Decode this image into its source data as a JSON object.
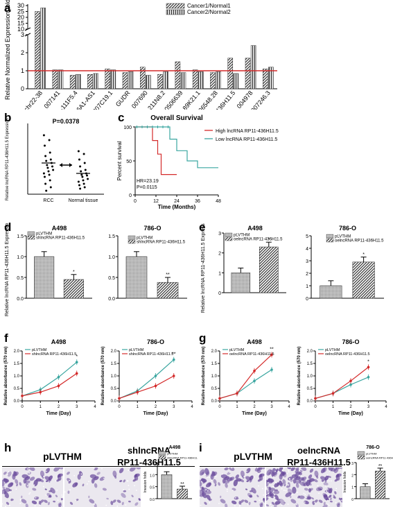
{
  "panel_labels": {
    "a": "a",
    "b": "b",
    "c": "c",
    "d": "d",
    "e": "e",
    "f": "f",
    "g": "g",
    "h": "h",
    "i": "i"
  },
  "colors": {
    "red": "#d42a2a",
    "teal": "#3aa6a0",
    "hatch": "#333333",
    "purple": "#6a4c9c"
  },
  "chart_data": [
    {
      "id": "a",
      "type": "bar",
      "ylabel": "Relative Normalized Expression(fold)",
      "yticks": [
        "0",
        "1",
        "2",
        "3",
        "10",
        "15",
        "20",
        "25",
        "30"
      ],
      "categories": [
        "chr22-38",
        "XLOC_007141",
        "RP11-111F5.4",
        "SLC6A1-AS1",
        "RP11-307C19.1",
        "GUDR",
        "XLOC_007690",
        "RP11-211N8.2",
        "LOC100506639",
        "RP11-89K21.1",
        "AC006548.28",
        "RP11-436H11.5",
        "XLOC_004978",
        "AC007246.3"
      ],
      "series": [
        {
          "name": "Cancer1/Normal1",
          "values": [
            25,
            1.05,
            0.75,
            0.8,
            1.1,
            0.9,
            1.2,
            0.8,
            1.5,
            1.05,
            0.9,
            1.7,
            1.7,
            1.1
          ]
        },
        {
          "name": "Cancer2/Normal2",
          "values": [
            28,
            1.05,
            0.8,
            0.85,
            1.05,
            0.95,
            0.75,
            0.95,
            0.9,
            0.95,
            0.95,
            0.85,
            2.4,
            1.2
          ]
        }
      ],
      "reference_line": 1
    },
    {
      "id": "b",
      "type": "scatter",
      "title": "P=0.0378",
      "ylabel": "Relative lncRNA RP11-436H11.5 Expression",
      "categories": [
        "RCC",
        "Normal tissue"
      ],
      "means": [
        0.45,
        0.3
      ]
    },
    {
      "id": "c",
      "type": "line",
      "title": "Overall Survival",
      "xlabel": "Time (Months)",
      "ylabel": "Percent survival",
      "xticks": [
        "0",
        "12",
        "24",
        "36",
        "48"
      ],
      "yticks": [
        "0",
        "50",
        "100"
      ],
      "annotations": [
        "HR=23.19",
        "P=0.0115"
      ],
      "series": [
        {
          "name": "High lncRNA RP11-436H11.5",
          "x": [
            0,
            10,
            10,
            13,
            13,
            15,
            15,
            24
          ],
          "y": [
            100,
            100,
            80,
            80,
            60,
            60,
            30,
            30
          ]
        },
        {
          "name": "Low lncRNA RP11-436H11.5",
          "x": [
            0,
            20,
            20,
            24,
            24,
            30,
            30,
            36,
            36,
            48
          ],
          "y": [
            100,
            100,
            82,
            82,
            65,
            65,
            50,
            50,
            40,
            40
          ]
        }
      ]
    },
    {
      "id": "d1",
      "type": "bar",
      "title": "A498",
      "ylabel": "Relative lncRNA RP11-436H11.5 Expression",
      "yticks": [
        "0.0",
        "0.5",
        "1.0",
        "1.5"
      ],
      "ylim": [
        0,
        1.5
      ],
      "series": [
        {
          "name": "pLVTHM",
          "values": [
            1.0
          ]
        },
        {
          "name": "shlncRNA RP11-436H11.5",
          "values": [
            0.45
          ]
        }
      ],
      "sig": "*"
    },
    {
      "id": "d2",
      "type": "bar",
      "title": "786-O",
      "yticks": [
        "0.0",
        "0.5",
        "1.0",
        "1.5"
      ],
      "ylim": [
        0,
        1.5
      ],
      "series": [
        {
          "name": "pLVTHM",
          "values": [
            1.0
          ]
        },
        {
          "name": "shlncRNA RP11-436H11.5",
          "values": [
            0.38
          ]
        }
      ],
      "sig": "**"
    },
    {
      "id": "e1",
      "type": "bar",
      "title": "A498",
      "ylabel": "Relative lncRNA RP11-436H11.5 Expression",
      "yticks": [
        "0",
        "1",
        "2",
        "3"
      ],
      "ylim": [
        0,
        3
      ],
      "series": [
        {
          "name": "pLVTHM",
          "values": [
            1.0
          ]
        },
        {
          "name": "oelncRNA RP11-436H11.5",
          "values": [
            2.3
          ]
        }
      ],
      "sig": "*"
    },
    {
      "id": "e2",
      "type": "bar",
      "title": "786-O",
      "yticks": [
        "0",
        "1",
        "2",
        "3",
        "4",
        "5"
      ],
      "ylim": [
        0,
        5
      ],
      "series": [
        {
          "name": "pLVTHM",
          "values": [
            1.0
          ]
        },
        {
          "name": "oelncRNA RP11-436H11.5",
          "values": [
            2.9
          ]
        }
      ],
      "sig": "*"
    },
    {
      "id": "f1",
      "type": "line",
      "title": "A498",
      "xlabel": "Time (Day)",
      "ylabel": "Relative absorbance (570 nm)",
      "xticks": [
        "0",
        "1",
        "2",
        "3",
        "4"
      ],
      "yticks": [
        "0.0",
        "0.5",
        "1.0",
        "1.5",
        "2.0"
      ],
      "ylim": [
        0,
        2
      ],
      "series": [
        {
          "name": "pLVTHM",
          "x": [
            0,
            1,
            2,
            3
          ],
          "y": [
            0.2,
            0.45,
            0.95,
            1.55
          ]
        },
        {
          "name": "shlncRNA RP11-436H11.5",
          "x": [
            0,
            1,
            2,
            3
          ],
          "y": [
            0.2,
            0.35,
            0.6,
            1.1
          ]
        }
      ],
      "sig": "*"
    },
    {
      "id": "f2",
      "type": "line",
      "title": "786-O",
      "xlabel": "Time (Day)",
      "ylabel": "Relative absorbance (570 nm)",
      "xticks": [
        "0",
        "1",
        "2",
        "3",
        "4"
      ],
      "yticks": [
        "0.0",
        "0.5",
        "1.0",
        "1.5",
        "2.0"
      ],
      "ylim": [
        0,
        2
      ],
      "series": [
        {
          "name": "pLVTHM",
          "x": [
            0,
            1,
            2,
            3
          ],
          "y": [
            0.1,
            0.4,
            1.0,
            1.65
          ]
        },
        {
          "name": "shlncRNA RP11-436H11.5",
          "x": [
            0,
            1,
            2,
            3
          ],
          "y": [
            0.1,
            0.35,
            0.6,
            1.0
          ]
        }
      ],
      "sig": "**"
    },
    {
      "id": "g1",
      "type": "line",
      "title": "A498",
      "xlabel": "Time (Day)",
      "ylabel": "Relative absorbance (570 nm)",
      "xticks": [
        "0",
        "1",
        "2",
        "3",
        "4"
      ],
      "yticks": [
        "0.0",
        "0.5",
        "1.0",
        "1.5",
        "2.0"
      ],
      "ylim": [
        0,
        2
      ],
      "series": [
        {
          "name": "pLVTHM",
          "x": [
            0,
            1,
            2,
            3
          ],
          "y": [
            0.1,
            0.3,
            0.8,
            1.25
          ]
        },
        {
          "name": "oelncRNA RP11-436H11.5",
          "x": [
            0,
            1,
            2,
            3
          ],
          "y": [
            0.1,
            0.3,
            1.2,
            1.85
          ]
        }
      ],
      "sig": "**"
    },
    {
      "id": "g2",
      "type": "line",
      "title": "786-O",
      "xlabel": "Time (Day)",
      "ylabel": "Relative absorbance (570 nm)",
      "xticks": [
        "0",
        "1",
        "2",
        "3",
        "4"
      ],
      "yticks": [
        "0.0",
        "0.5",
        "1.0",
        "1.5",
        "2.0"
      ],
      "ylim": [
        0,
        2
      ],
      "series": [
        {
          "name": "pLVTHM",
          "x": [
            0,
            1,
            2,
            3
          ],
          "y": [
            0.1,
            0.3,
            0.65,
            0.95
          ]
        },
        {
          "name": "oelncRNA RP11-436H11.5",
          "x": [
            0,
            1,
            2,
            3
          ],
          "y": [
            0.1,
            0.3,
            0.8,
            1.35
          ]
        }
      ],
      "sig": "*"
    },
    {
      "id": "h",
      "type": "bar",
      "title": "A498",
      "ylabel": "Invasion folds",
      "yticks": [
        "0.0",
        "0.5",
        "1.0",
        "1.5"
      ],
      "ylim": [
        0,
        1.5
      ],
      "series": [
        {
          "name": "pLVTHM",
          "values": [
            1.0
          ]
        },
        {
          "name": "shlncRNA RP11-436H11.5",
          "values": [
            0.4
          ]
        }
      ],
      "sig": "**"
    },
    {
      "id": "i",
      "type": "bar",
      "title": "786-O",
      "ylabel": "Invasion folds",
      "yticks": [
        "0",
        "1",
        "2",
        "3"
      ],
      "ylim": [
        0,
        3
      ],
      "series": [
        {
          "name": "pLVTHM",
          "values": [
            1.0
          ]
        },
        {
          "name": "oelncRNA RP11-436H11.5",
          "values": [
            2.3
          ]
        }
      ],
      "sig": "**"
    }
  ],
  "micrographs": {
    "h_left": "pLVTHM",
    "h_right_line1": "shlncRNA",
    "h_right_line2": "RP11-436H11.5",
    "i_left": "pLVTHM",
    "i_right_line1": "oelncRNA",
    "i_right_line2": "RP11-436H11.5"
  }
}
